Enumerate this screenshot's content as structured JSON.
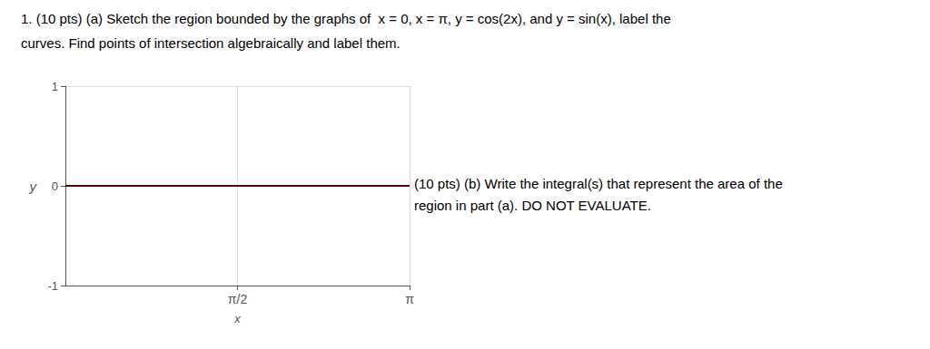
{
  "chart_data": {
    "type": "line",
    "title": "1. (10 pts) (a) Sketch the region bounded by the graphs of  x = 0, x = π, y = cos(2x), and y = sin(x), label the",
    "subtitle": "curves. Find points of intersection algebraically and label them.",
    "annotations": [
      "(10 pts) (b) Write the integral(s) that represent the area of the",
      "region in part (a). DO NOT EVALUATE."
    ],
    "x_label": "x",
    "y_label": "y",
    "xlim": [
      0,
      3.14159265
    ],
    "ylim": [
      -1.0,
      1.0
    ],
    "xticks": [
      {
        "value": 1.5707963267948966,
        "label": "π/2"
      },
      {
        "value": 3.14159265,
        "label": "π"
      }
    ],
    "yticks": [
      -1,
      0,
      1
    ],
    "grid": true,
    "hline": {
      "y": 0,
      "color": "#5c0000"
    }
  }
}
